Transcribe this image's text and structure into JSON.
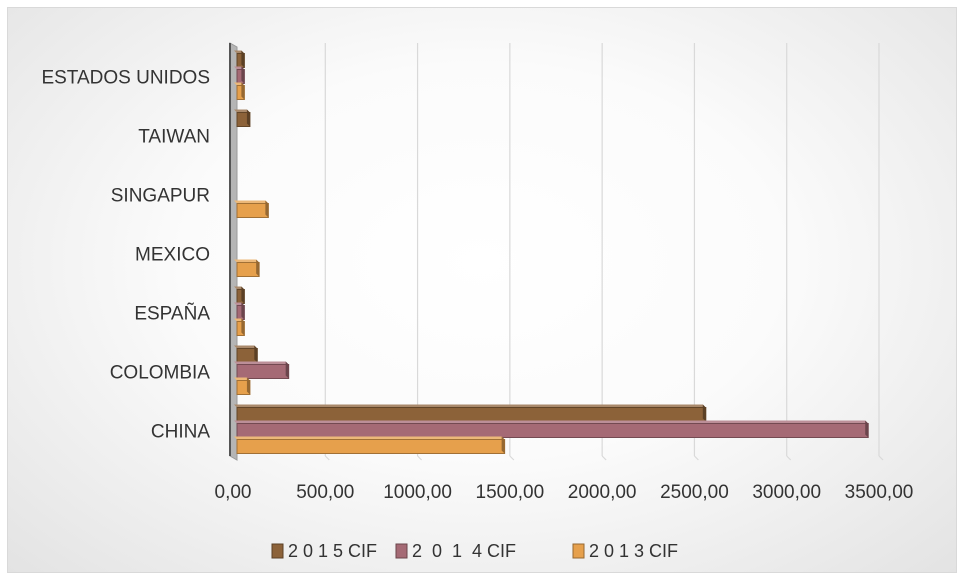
{
  "chart_data": {
    "type": "bar",
    "orientation": "horizontal",
    "title": "",
    "xlabel": "",
    "ylabel": "",
    "categories": [
      "CHINA",
      "COLOMBIA",
      "ESPAÑA",
      "MEXICO",
      "SINGAPUR",
      "TAIWAN",
      "ESTADOS UNIDOS"
    ],
    "series": [
      {
        "name": "2 0 1 5 CIF",
        "color": "#8c6239",
        "values": [
          2540,
          110,
          40,
          0,
          0,
          70,
          40
        ]
      },
      {
        "name": "2  0  1  4 CIF",
        "color": "#a56a75",
        "values": [
          3420,
          280,
          40,
          0,
          0,
          0,
          40
        ]
      },
      {
        "name": "2 0 1 3 CIF",
        "color": "#e6a04c",
        "values": [
          1450,
          70,
          40,
          120,
          170,
          0,
          40
        ]
      }
    ],
    "xlim": [
      0,
      3500
    ],
    "x_ticks": [
      "0,00",
      "500,00",
      "1000,00",
      "1500,00",
      "2000,00",
      "2500,00",
      "3000,00",
      "3500,00"
    ],
    "grid": true,
    "legend_position": "bottom"
  }
}
